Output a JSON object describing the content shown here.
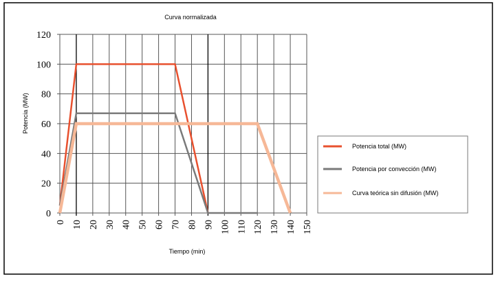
{
  "chart_data": {
    "type": "line",
    "title": "Curva normalizada",
    "xlabel": "Tiempo (min)",
    "ylabel": "Potencia (MW)",
    "xlim": [
      0,
      150
    ],
    "ylim": [
      0,
      120
    ],
    "xticks": [
      0,
      10,
      20,
      30,
      40,
      50,
      60,
      70,
      80,
      90,
      100,
      110,
      120,
      130,
      140,
      150
    ],
    "yticks": [
      0,
      20,
      40,
      60,
      80,
      100,
      120
    ],
    "grid": true,
    "highlight_vlines": [
      10,
      90
    ],
    "legend_position": "right",
    "series": [
      {
        "name": "Potencia total (MW)",
        "color": "#e8502e",
        "width": 2.5,
        "points": [
          [
            0,
            5
          ],
          [
            10,
            100
          ],
          [
            70,
            100
          ],
          [
            90,
            0
          ]
        ]
      },
      {
        "name": "Potencia por convección (MW)",
        "color": "#7a7a7a",
        "width": 2.5,
        "points": [
          [
            0,
            5
          ],
          [
            10,
            67
          ],
          [
            70,
            67
          ],
          [
            90,
            0
          ],
          [
            120,
            0
          ]
        ]
      },
      {
        "name": "Curva teórica sin difusión (MW)",
        "color": "#f6b897",
        "width": 4.5,
        "points": [
          [
            0,
            0
          ],
          [
            10,
            60
          ],
          [
            120,
            60
          ],
          [
            140,
            0
          ]
        ]
      }
    ]
  }
}
